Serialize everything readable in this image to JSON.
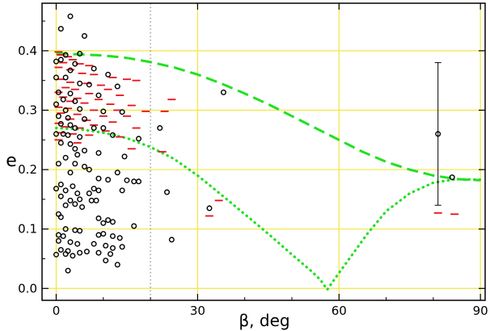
{
  "chart_data": {
    "type": "scatter",
    "xlabel": "β, deg",
    "ylabel": "e",
    "xlim": [
      -3,
      91
    ],
    "ylim": [
      -0.02,
      0.48
    ],
    "x_ticks": [
      0,
      30,
      60,
      90
    ],
    "x_tick_labels": [
      "0",
      "30",
      "60",
      "90"
    ],
    "y_ticks": [
      0.0,
      0.1,
      0.2,
      0.3,
      0.4
    ],
    "y_tick_labels": [
      "0.0",
      "0.1",
      "0.2",
      "0.3",
      "0.4"
    ],
    "grid": true,
    "colors": {
      "grid": "#f2e640",
      "circles": "#000000",
      "dashes": "#e8101a",
      "upper_curve": "#22e022",
      "lower_curve": "#22e022",
      "vertical_line": "#888888",
      "error_bar": "#000000"
    },
    "vertical_reference_line": {
      "x": 20,
      "style": "dotted"
    },
    "series": [
      {
        "marker": "open-circle",
        "color": "#000000",
        "points": [
          [
            3,
            0.458
          ],
          [
            1,
            0.437
          ],
          [
            6,
            0.425
          ],
          [
            2,
            0.393
          ],
          [
            5,
            0.395
          ],
          [
            1,
            0.385
          ],
          [
            0,
            0.382
          ],
          [
            4,
            0.378
          ],
          [
            3,
            0.367
          ],
          [
            8,
            0.37
          ],
          [
            11,
            0.36
          ],
          [
            0,
            0.355
          ],
          [
            2,
            0.355
          ],
          [
            5,
            0.345
          ],
          [
            7,
            0.343
          ],
          [
            13,
            0.34
          ],
          [
            0.5,
            0.33
          ],
          [
            3,
            0.328
          ],
          [
            9,
            0.325
          ],
          [
            1.5,
            0.318
          ],
          [
            4,
            0.315
          ],
          [
            0,
            0.31
          ],
          [
            2,
            0.3
          ],
          [
            5,
            0.302
          ],
          [
            14,
            0.297
          ],
          [
            10,
            0.298
          ],
          [
            0.5,
            0.29
          ],
          [
            2.5,
            0.287
          ],
          [
            6,
            0.285
          ],
          [
            1,
            0.277
          ],
          [
            3,
            0.275
          ],
          [
            4,
            0.27
          ],
          [
            8,
            0.27
          ],
          [
            10,
            0.27
          ],
          [
            22,
            0.27
          ],
          [
            0,
            0.26
          ],
          [
            1.5,
            0.26
          ],
          [
            2.5,
            0.258
          ],
          [
            5,
            0.255
          ],
          [
            12,
            0.258
          ],
          [
            17.5,
            0.252
          ],
          [
            1,
            0.245
          ],
          [
            3,
            0.243
          ],
          [
            4,
            0.235
          ],
          [
            6,
            0.232
          ],
          [
            9,
            0.228
          ],
          [
            4.5,
            0.225
          ],
          [
            2,
            0.22
          ],
          [
            0.5,
            0.21
          ],
          [
            14.5,
            0.222
          ],
          [
            4,
            0.21
          ],
          [
            6,
            0.205
          ],
          [
            7,
            0.2
          ],
          [
            3,
            0.195
          ],
          [
            13,
            0.195
          ],
          [
            9,
            0.185
          ],
          [
            11,
            0.183
          ],
          [
            15,
            0.182
          ],
          [
            16.5,
            0.18
          ],
          [
            17.5,
            0.18
          ],
          [
            1,
            0.175
          ],
          [
            3.5,
            0.172
          ],
          [
            0,
            0.168
          ],
          [
            2,
            0.165
          ],
          [
            4.5,
            0.16
          ],
          [
            7,
            0.16
          ],
          [
            8,
            0.168
          ],
          [
            9,
            0.165
          ],
          [
            14,
            0.165
          ],
          [
            23.5,
            0.162
          ],
          [
            1,
            0.155
          ],
          [
            3,
            0.148
          ],
          [
            5,
            0.15
          ],
          [
            7.5,
            0.148
          ],
          [
            8.5,
            0.148
          ],
          [
            2,
            0.14
          ],
          [
            4,
            0.142
          ],
          [
            5.5,
            0.137
          ],
          [
            32.5,
            0.135
          ],
          [
            0.5,
            0.125
          ],
          [
            1,
            0.12
          ],
          [
            9,
            0.118
          ],
          [
            11,
            0.115
          ],
          [
            10,
            0.11
          ],
          [
            12,
            0.112
          ],
          [
            16.5,
            0.105
          ],
          [
            2,
            0.1
          ],
          [
            4,
            0.098
          ],
          [
            5,
            0.097
          ],
          [
            0.5,
            0.09
          ],
          [
            1.5,
            0.088
          ],
          [
            9,
            0.09
          ],
          [
            10,
            0.092
          ],
          [
            12,
            0.088
          ],
          [
            13.5,
            0.085
          ],
          [
            24.5,
            0.082
          ],
          [
            0.5,
            0.08
          ],
          [
            3,
            0.078
          ],
          [
            4.5,
            0.075
          ],
          [
            8,
            0.075
          ],
          [
            10.5,
            0.072
          ],
          [
            12,
            0.068
          ],
          [
            14,
            0.07
          ],
          [
            1,
            0.065
          ],
          [
            2.5,
            0.063
          ],
          [
            5,
            0.06
          ],
          [
            6.5,
            0.062
          ],
          [
            9,
            0.06
          ],
          [
            11.5,
            0.058
          ],
          [
            0,
            0.057
          ],
          [
            2,
            0.058
          ],
          [
            3.5,
            0.055
          ],
          [
            10.5,
            0.047
          ],
          [
            13,
            0.04
          ],
          [
            2.5,
            0.03
          ],
          [
            35.5,
            0.33
          ],
          [
            81,
            0.26
          ],
          [
            84,
            0.187
          ]
        ]
      },
      {
        "marker": "horizontal-dash",
        "color": "#e8101a",
        "points": [
          [
            0.5,
            0.398
          ],
          [
            1,
            0.393
          ],
          [
            2.5,
            0.39
          ],
          [
            3.5,
            0.385
          ],
          [
            1.5,
            0.38
          ],
          [
            5,
            0.378
          ],
          [
            7,
            0.375
          ],
          [
            0.5,
            0.372
          ],
          [
            3,
            0.368
          ],
          [
            5.5,
            0.362
          ],
          [
            8,
            0.36
          ],
          [
            12,
            0.355
          ],
          [
            15,
            0.352
          ],
          [
            17,
            0.35
          ],
          [
            1,
            0.352
          ],
          [
            3,
            0.347
          ],
          [
            6.5,
            0.345
          ],
          [
            9.5,
            0.342
          ],
          [
            2,
            0.338
          ],
          [
            4,
            0.335
          ],
          [
            11,
            0.335
          ],
          [
            0.5,
            0.33
          ],
          [
            7,
            0.328
          ],
          [
            13.5,
            0.325
          ],
          [
            1.5,
            0.322
          ],
          [
            4.5,
            0.32
          ],
          [
            9,
            0.318
          ],
          [
            24.5,
            0.318
          ],
          [
            3,
            0.315
          ],
          [
            6,
            0.312
          ],
          [
            11.5,
            0.31
          ],
          [
            16,
            0.308
          ],
          [
            0.5,
            0.305
          ],
          [
            2.5,
            0.303
          ],
          [
            8,
            0.3
          ],
          [
            13,
            0.3
          ],
          [
            19,
            0.298
          ],
          [
            23,
            0.298
          ],
          [
            1,
            0.295
          ],
          [
            4.5,
            0.293
          ],
          [
            10,
            0.29
          ],
          [
            15,
            0.29
          ],
          [
            3,
            0.285
          ],
          [
            6.5,
            0.283
          ],
          [
            12,
            0.28
          ],
          [
            0.5,
            0.278
          ],
          [
            8,
            0.275
          ],
          [
            2,
            0.272
          ],
          [
            5,
            0.27
          ],
          [
            17,
            0.27
          ],
          [
            10.5,
            0.265
          ],
          [
            1,
            0.262
          ],
          [
            3.5,
            0.26
          ],
          [
            7,
            0.258
          ],
          [
            13.5,
            0.255
          ],
          [
            0.5,
            0.25
          ],
          [
            16,
            0.235
          ],
          [
            22.5,
            0.23
          ],
          [
            4.5,
            0.245
          ],
          [
            32.5,
            0.122
          ],
          [
            34.5,
            0.148
          ],
          [
            81,
            0.127
          ],
          [
            84.5,
            0.125
          ]
        ]
      },
      {
        "name": "",
        "style": "dashed",
        "color": "#22e022",
        "x": [
          0,
          5,
          10,
          15,
          20,
          25,
          30,
          35,
          40,
          45,
          50,
          55,
          60,
          65,
          70,
          75,
          80,
          85,
          90
        ],
        "y": [
          0.395,
          0.394,
          0.392,
          0.388,
          0.381,
          0.372,
          0.36,
          0.345,
          0.328,
          0.31,
          0.29,
          0.27,
          0.25,
          0.23,
          0.213,
          0.2,
          0.19,
          0.184,
          0.182
        ]
      },
      {
        "name": "",
        "style": "dotted",
        "color": "#22e022",
        "x": [
          0,
          5,
          10,
          15,
          20,
          25,
          30,
          35,
          40,
          45,
          50,
          54,
          56,
          57.5,
          59,
          62,
          66,
          70,
          75,
          80,
          85,
          90
        ],
        "y": [
          0.27,
          0.268,
          0.262,
          0.253,
          0.238,
          0.218,
          0.19,
          0.158,
          0.125,
          0.092,
          0.057,
          0.03,
          0.015,
          -0.002,
          0.015,
          0.048,
          0.092,
          0.13,
          0.16,
          0.178,
          0.184,
          0.183
        ]
      }
    ],
    "error_bar": {
      "x": 81,
      "y_low": 0.14,
      "y_high": 0.38,
      "center": 0.26
    }
  }
}
